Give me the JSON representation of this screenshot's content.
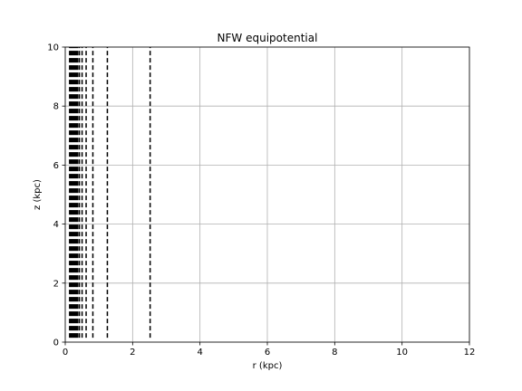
{
  "chart_data": {
    "type": "line",
    "title": "NFW equipotential",
    "xlabel": "r (kpc)",
    "ylabel": "z (kpc)",
    "xlim": [
      0,
      12
    ],
    "ylim": [
      0,
      10
    ],
    "xticks": [
      0,
      2,
      4,
      6,
      8,
      10,
      12
    ],
    "yticks": [
      0,
      2,
      4,
      6,
      8,
      10
    ],
    "grid": true,
    "line_style": "dashed",
    "line_color": "#000000",
    "contour_r": [
      0.13,
      0.16,
      0.19,
      0.22,
      0.25,
      0.28,
      0.31,
      0.34,
      0.37,
      0.42,
      0.5,
      0.62,
      0.82,
      1.25,
      2.52
    ],
    "z_range": [
      0.15,
      10
    ]
  }
}
